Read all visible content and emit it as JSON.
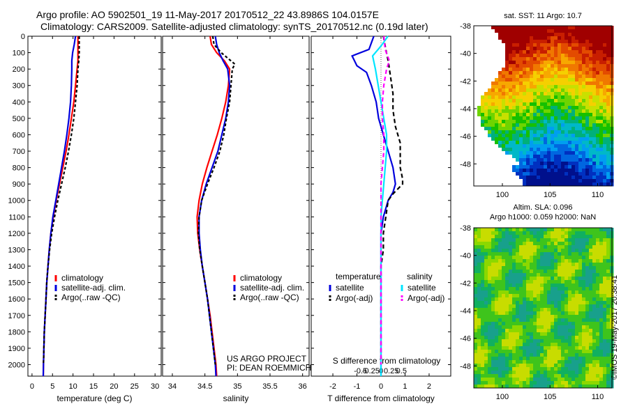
{
  "titles": {
    "line1": "Argo profile: AO 5902501_19 11-May-2017 20170512_22 43.8986S 104.0157E",
    "line2": "Climatology: CARS2009. Satellite-adjusted climatology: synTS_20170512.nc (0.19d later)"
  },
  "credit": "©IMOS 19-May-2017 20:38:41",
  "project": {
    "line1": "US ARGO PROJECT",
    "line2": "PI: DEAN ROEMMICH"
  },
  "colors": {
    "clim": "#ff0000",
    "sat": "#0000dd",
    "argo": "#000000",
    "sat_s": "#00e5ff",
    "argo_s": "#ff00ff"
  },
  "chart_data": [
    {
      "type": "line",
      "id": "temperature",
      "xlabel": "temperature (deg C)",
      "ylabel": "",
      "xlim": [
        -1,
        31.5
      ],
      "ylim": [
        2070,
        0
      ],
      "xticks": [
        0,
        5,
        10,
        15,
        20,
        25,
        30
      ],
      "yticks": [
        0,
        100,
        200,
        300,
        400,
        500,
        600,
        700,
        800,
        900,
        1000,
        1100,
        1200,
        1300,
        1400,
        1500,
        1600,
        1700,
        1800,
        1900,
        2000
      ],
      "legend": [
        "climatology",
        "satellite-adj. clim.",
        "Argo(..raw -QC)"
      ],
      "series": [
        {
          "name": "climatology",
          "color": "clim",
          "dash": "",
          "points": [
            [
              11.2,
              0
            ],
            [
              11.2,
              50
            ],
            [
              11.2,
              100
            ],
            [
              11.2,
              150
            ],
            [
              11.0,
              200
            ],
            [
              10.6,
              300
            ],
            [
              10.2,
              400
            ],
            [
              9.6,
              500
            ],
            [
              9.0,
              600
            ],
            [
              8.3,
              700
            ],
            [
              7.5,
              800
            ],
            [
              6.7,
              900
            ],
            [
              5.9,
              1000
            ],
            [
              5.2,
              1100
            ],
            [
              4.6,
              1200
            ],
            [
              4.2,
              1300
            ],
            [
              3.9,
              1400
            ],
            [
              3.6,
              1500
            ],
            [
              3.4,
              1600
            ],
            [
              3.2,
              1700
            ],
            [
              3.0,
              1800
            ],
            [
              2.9,
              1900
            ],
            [
              2.8,
              2000
            ],
            [
              2.75,
              2070
            ]
          ]
        },
        {
          "name": "satellite-adj. clim.",
          "color": "sat",
          "dash": "",
          "points": [
            [
              10.6,
              0
            ],
            [
              10.3,
              50
            ],
            [
              9.9,
              100
            ],
            [
              9.7,
              150
            ],
            [
              9.7,
              200
            ],
            [
              9.6,
              300
            ],
            [
              9.4,
              400
            ],
            [
              9.0,
              500
            ],
            [
              8.5,
              600
            ],
            [
              7.9,
              700
            ],
            [
              7.2,
              800
            ],
            [
              6.5,
              900
            ],
            [
              5.8,
              1000
            ],
            [
              5.1,
              1100
            ],
            [
              4.6,
              1200
            ],
            [
              4.2,
              1300
            ],
            [
              3.9,
              1400
            ],
            [
              3.6,
              1500
            ],
            [
              3.4,
              1600
            ],
            [
              3.2,
              1700
            ],
            [
              3.0,
              1800
            ],
            [
              2.9,
              1900
            ],
            [
              2.8,
              2000
            ],
            [
              2.75,
              2070
            ]
          ]
        },
        {
          "name": "Argo(..raw -QC)",
          "color": "argo",
          "dash": "4,3",
          "points": [
            [
              11.5,
              0
            ],
            [
              11.5,
              60
            ],
            [
              11.5,
              100
            ],
            [
              11.4,
              150
            ],
            [
              11.2,
              200
            ],
            [
              11.0,
              300
            ],
            [
              10.6,
              400
            ],
            [
              10.2,
              500
            ],
            [
              9.6,
              600
            ],
            [
              8.9,
              700
            ],
            [
              8.1,
              800
            ],
            [
              7.2,
              900
            ],
            [
              6.3,
              1000
            ],
            [
              5.5,
              1100
            ],
            [
              4.8,
              1200
            ],
            [
              4.3,
              1300
            ],
            [
              3.9,
              1400
            ],
            [
              3.6,
              1500
            ],
            [
              3.4,
              1600
            ],
            [
              3.2,
              1700
            ],
            [
              3.0,
              1800
            ],
            [
              2.9,
              1900
            ],
            [
              2.8,
              2000
            ]
          ]
        }
      ]
    },
    {
      "type": "line",
      "id": "salinity",
      "xlabel": "salinity",
      "ylabel": "",
      "xlim": [
        33.85,
        36.1
      ],
      "ylim": [
        2070,
        0
      ],
      "xticks": [
        34,
        34.5,
        35,
        35.5,
        36
      ],
      "legend": [
        "climatology",
        "satellite-adj. clim.",
        "Argo(..raw -QC)"
      ],
      "series": [
        {
          "name": "climatology",
          "color": "clim",
          "dash": "",
          "points": [
            [
              34.58,
              0
            ],
            [
              34.6,
              50
            ],
            [
              34.68,
              100
            ],
            [
              34.8,
              150
            ],
            [
              34.88,
              200
            ],
            [
              34.86,
              300
            ],
            [
              34.82,
              400
            ],
            [
              34.76,
              500
            ],
            [
              34.69,
              600
            ],
            [
              34.61,
              700
            ],
            [
              34.53,
              800
            ],
            [
              34.46,
              900
            ],
            [
              34.41,
              1000
            ],
            [
              34.38,
              1100
            ],
            [
              34.39,
              1200
            ],
            [
              34.42,
              1300
            ],
            [
              34.46,
              1400
            ],
            [
              34.5,
              1500
            ],
            [
              34.54,
              1600
            ],
            [
              34.58,
              1700
            ],
            [
              34.61,
              1800
            ],
            [
              34.64,
              1900
            ],
            [
              34.67,
              2000
            ],
            [
              34.68,
              2070
            ]
          ]
        },
        {
          "name": "satellite-adj. clim.",
          "color": "sat",
          "dash": "",
          "points": [
            [
              34.66,
              0
            ],
            [
              34.68,
              50
            ],
            [
              34.72,
              100
            ],
            [
              34.78,
              150
            ],
            [
              34.85,
              200
            ],
            [
              34.88,
              300
            ],
            [
              34.86,
              400
            ],
            [
              34.82,
              500
            ],
            [
              34.76,
              600
            ],
            [
              34.7,
              700
            ],
            [
              34.61,
              800
            ],
            [
              34.52,
              900
            ],
            [
              34.45,
              1000
            ],
            [
              34.41,
              1100
            ],
            [
              34.41,
              1200
            ],
            [
              34.43,
              1300
            ],
            [
              34.46,
              1400
            ],
            [
              34.5,
              1500
            ],
            [
              34.54,
              1600
            ],
            [
              34.57,
              1700
            ],
            [
              34.6,
              1800
            ],
            [
              34.63,
              1900
            ],
            [
              34.66,
              2000
            ],
            [
              34.67,
              2070
            ]
          ]
        },
        {
          "name": "Argo(..raw -QC)",
          "color": "argo",
          "dash": "4,3",
          "points": [
            [
              34.62,
              0
            ],
            [
              34.64,
              50
            ],
            [
              34.75,
              100
            ],
            [
              34.9,
              150
            ],
            [
              34.96,
              170
            ],
            [
              34.92,
              200
            ],
            [
              34.9,
              300
            ],
            [
              34.88,
              400
            ],
            [
              34.83,
              500
            ],
            [
              34.79,
              600
            ],
            [
              34.73,
              700
            ],
            [
              34.64,
              800
            ],
            [
              34.54,
              900
            ],
            [
              34.45,
              1000
            ],
            [
              34.41,
              1100
            ],
            [
              34.4,
              1200
            ],
            [
              34.42,
              1300
            ],
            [
              34.46,
              1400
            ],
            [
              34.5,
              1500
            ],
            [
              34.54,
              1600
            ],
            [
              34.57,
              1700
            ],
            [
              34.6,
              1800
            ],
            [
              34.63,
              1900
            ],
            [
              34.66,
              2000
            ]
          ]
        }
      ]
    },
    {
      "type": "line",
      "id": "differences",
      "xlabel": "T difference from climatology",
      "xlabel_top": "S difference from climatology",
      "ylabel": "",
      "xlim": [
        -2.9,
        2.9
      ],
      "ylim": [
        2070,
        0
      ],
      "xticks": [
        -2,
        -1,
        0,
        1,
        2
      ],
      "sticks": [
        -0.5,
        -0.25,
        0,
        0.25,
        0.5
      ],
      "legend_headers": [
        "temperature",
        "salinity"
      ],
      "legend": [
        "satellite",
        "Argo(-adj)",
        "satellite",
        "Argo(-adj)"
      ],
      "series": [
        {
          "name": "T satellite",
          "color": "sat",
          "dash": "",
          "points": [
            [
              -0.3,
              0
            ],
            [
              -0.5,
              80
            ],
            [
              -1.2,
              120
            ],
            [
              -1.0,
              180
            ],
            [
              -0.6,
              220
            ],
            [
              -0.4,
              300
            ],
            [
              -0.2,
              400
            ],
            [
              -0.1,
              500
            ],
            [
              0.1,
              600
            ],
            [
              0.3,
              700
            ],
            [
              0.5,
              800
            ],
            [
              0.6,
              900
            ],
            [
              0.5,
              950
            ],
            [
              0.3,
              1000
            ],
            [
              0.1,
              1100
            ],
            [
              0.0,
              1200
            ],
            [
              0.0,
              1300
            ],
            [
              0.0,
              1500
            ],
            [
              0.0,
              1700
            ],
            [
              0.0,
              1900
            ],
            [
              0.0,
              2070
            ]
          ]
        },
        {
          "name": "T Argo(-adj)",
          "color": "argo",
          "dash": "6,4",
          "points": [
            [
              0.1,
              0
            ],
            [
              0.2,
              80
            ],
            [
              0.3,
              150
            ],
            [
              0.4,
              250
            ],
            [
              0.5,
              350
            ],
            [
              0.5,
              450
            ],
            [
              0.6,
              550
            ],
            [
              0.8,
              650
            ],
            [
              0.8,
              720
            ],
            [
              0.8,
              800
            ],
            [
              0.9,
              870
            ],
            [
              0.9,
              900
            ],
            [
              0.5,
              960
            ],
            [
              0.3,
              1000
            ],
            [
              0.2,
              1100
            ],
            [
              0.1,
              1200
            ],
            [
              0.1,
              1300
            ],
            [
              0.0,
              1400
            ],
            [
              0.0,
              1600
            ],
            [
              0.0,
              1800
            ],
            [
              0.0,
              2000
            ]
          ]
        },
        {
          "name": "S satellite",
          "color": "sat_s",
          "dash": "",
          "points": [
            [
              0.05,
              0
            ],
            [
              0.0,
              60
            ],
            [
              -0.06,
              120
            ],
            [
              -0.04,
              200
            ],
            [
              -0.02,
              300
            ],
            [
              0.0,
              400
            ],
            [
              0.02,
              500
            ],
            [
              0.04,
              600
            ],
            [
              0.04,
              700
            ],
            [
              0.03,
              800
            ],
            [
              0.02,
              900
            ],
            [
              0.01,
              1000
            ],
            [
              0.0,
              1100
            ],
            [
              0.0,
              1300
            ],
            [
              0.0,
              1500
            ],
            [
              0.0,
              1700
            ],
            [
              0.0,
              1900
            ],
            [
              0.0,
              2070
            ]
          ]
        },
        {
          "name": "S Argo(-adj)",
          "color": "argo_s",
          "dash": "6,4",
          "points": [
            [
              0.02,
              0
            ],
            [
              0.03,
              80
            ],
            [
              0.06,
              150
            ],
            [
              0.04,
              200
            ],
            [
              0.02,
              300
            ],
            [
              0.01,
              400
            ],
            [
              0.01,
              500
            ],
            [
              0.02,
              600
            ],
            [
              0.02,
              700
            ],
            [
              0.01,
              800
            ],
            [
              0.0,
              900
            ],
            [
              0.0,
              1000
            ],
            [
              0.0,
              1200
            ],
            [
              0.0,
              1400
            ],
            [
              0.0,
              1600
            ],
            [
              0.0,
              1800
            ],
            [
              0.0,
              2000
            ]
          ]
        }
      ]
    },
    {
      "type": "heatmap",
      "id": "sst-map",
      "title": "sat. SST: 11 Argo: 10.7",
      "xlim": [
        97,
        111.5
      ],
      "ylim": [
        -49.6,
        -38
      ],
      "xticks": [
        100,
        105,
        110
      ],
      "yticks": [
        -38,
        -40,
        -42,
        -44,
        -46,
        -48
      ]
    },
    {
      "type": "heatmap",
      "id": "sla-map",
      "title_line1": "Altim. SLA: 0.096",
      "title_line2": "Argo h1000: 0.059 h2000: NaN",
      "xlim": [
        97,
        111.5
      ],
      "ylim": [
        -49.6,
        -38
      ],
      "xticks": [
        100,
        105,
        110
      ],
      "yticks": [
        -38,
        -40,
        -42,
        -44,
        -46,
        -48
      ]
    }
  ]
}
